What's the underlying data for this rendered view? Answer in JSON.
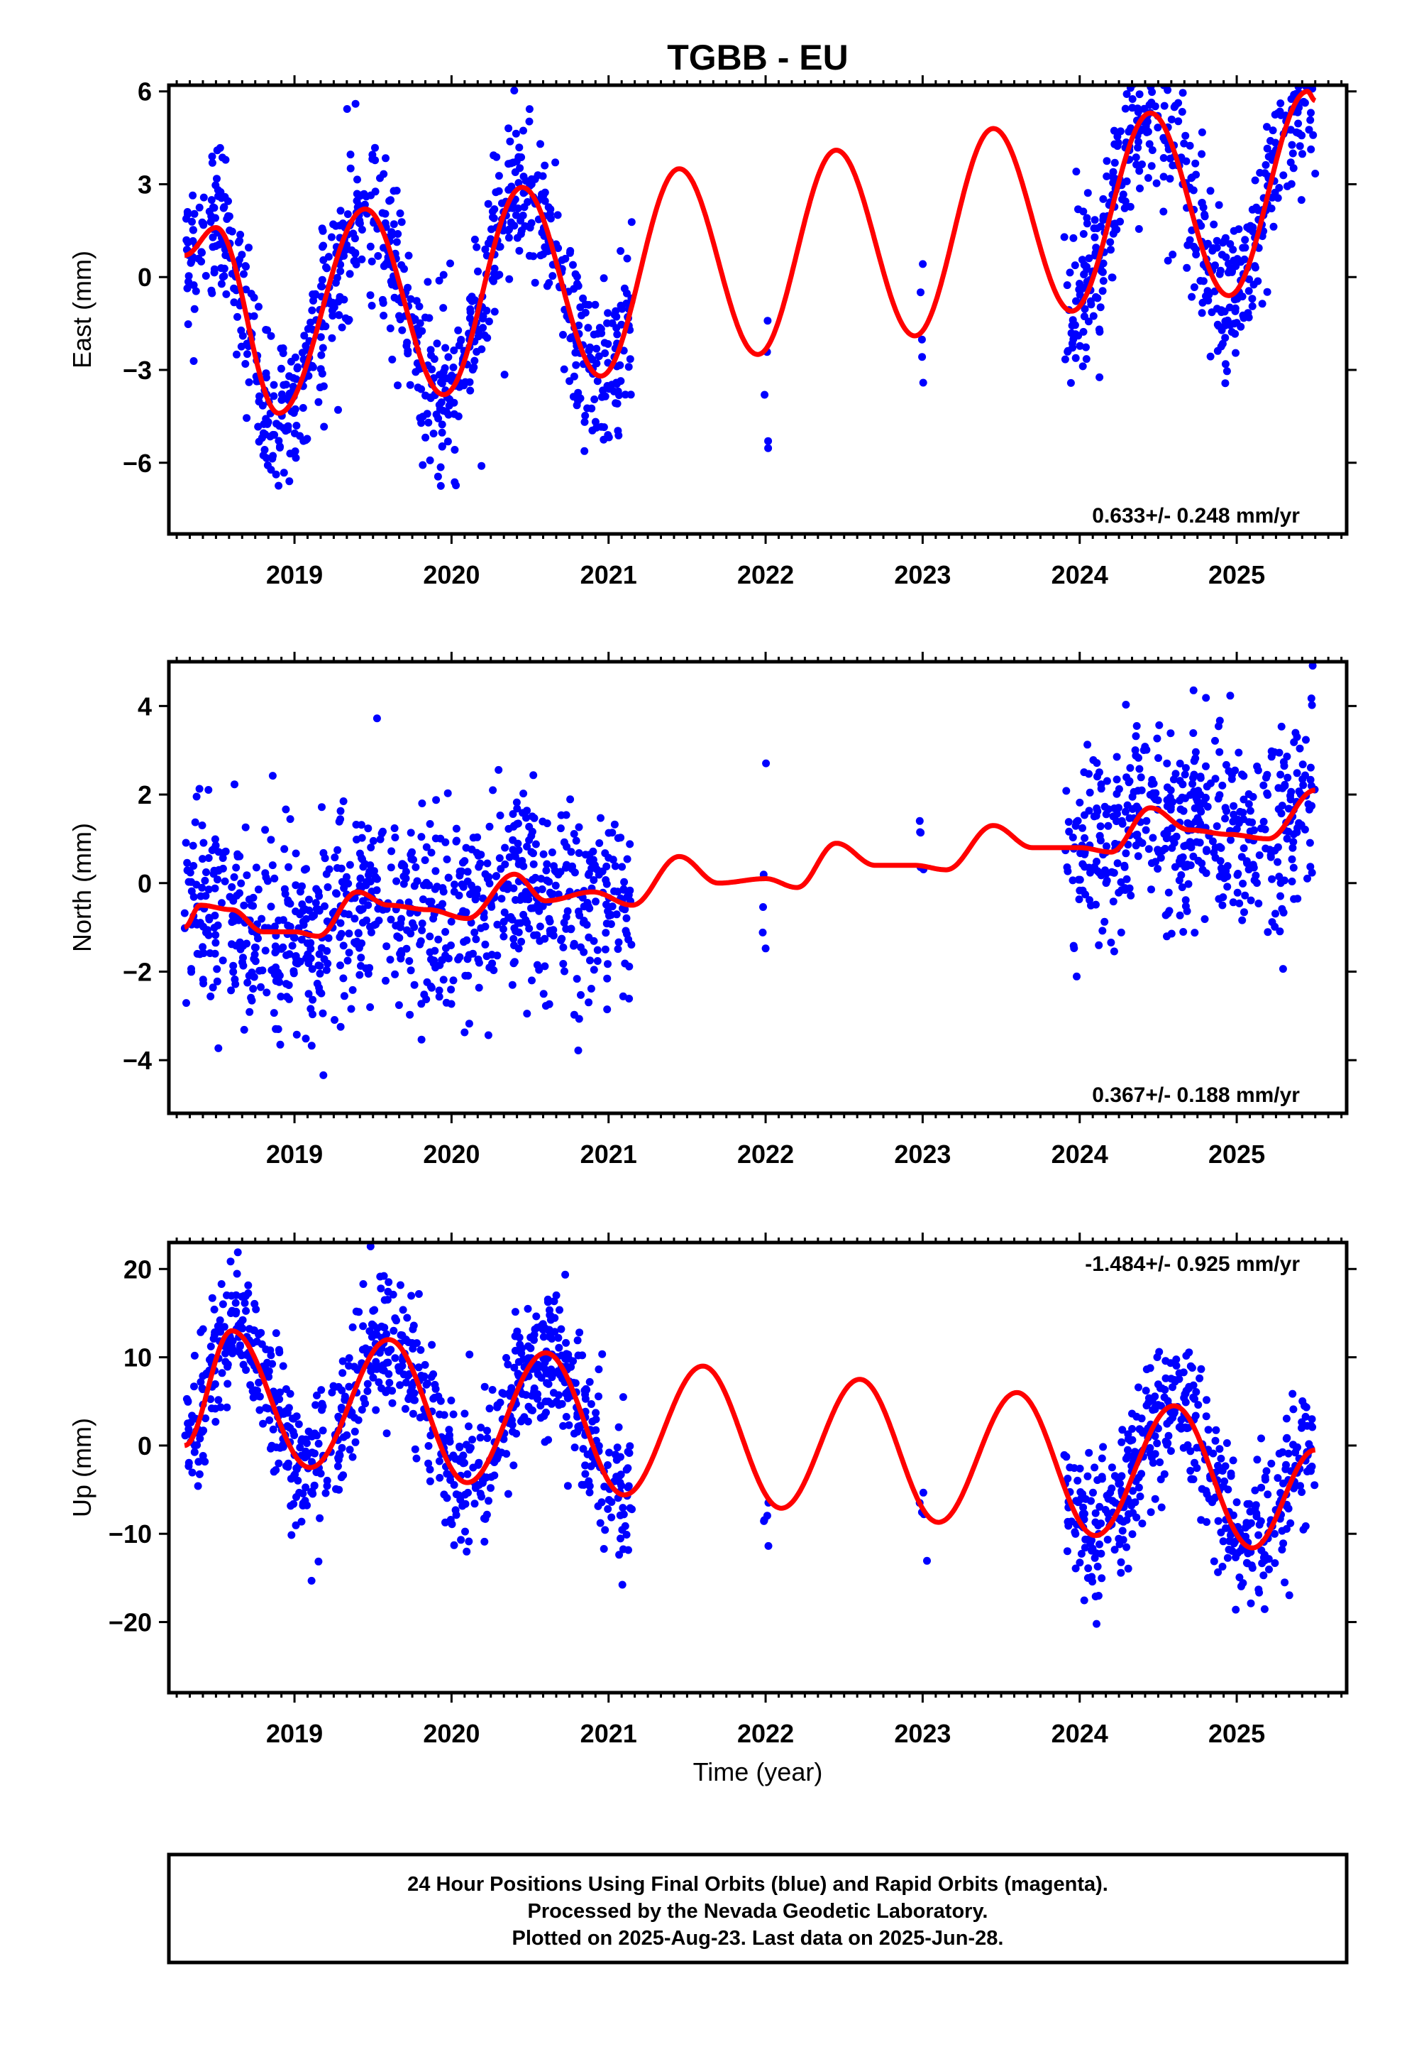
{
  "title": "TGBB - EU",
  "xlabel": "Time (year)",
  "x_ticks": [
    "2019",
    "2020",
    "2021",
    "2022",
    "2023",
    "2024",
    "2025"
  ],
  "footer": {
    "line1": "24 Hour Positions Using Final Orbits (blue) and Rapid Orbits (magenta).",
    "line2": "Processed by the Nevada Geodetic Laboratory.",
    "line3": "Plotted on 2025-Aug-23. Last data on 2025-Jun-28."
  },
  "colors": {
    "points": "#0000ff",
    "fit": "#ff0000",
    "frame": "#000000"
  },
  "chart_data": [
    {
      "type": "scatter",
      "ylabel": "East (mm)",
      "rate_label": "0.633+/- 0.248 mm/yr",
      "xlim": [
        2018.2,
        2025.7
      ],
      "ylim": [
        -8.3,
        6.2
      ],
      "y_ticks": [
        {
          "value": 6,
          "label": "6"
        },
        {
          "value": 3,
          "label": "3"
        },
        {
          "value": 0,
          "label": "0"
        },
        {
          "value": -3,
          "label": "−3"
        },
        {
          "value": -6,
          "label": "−6"
        }
      ],
      "data_segments": [
        [
          2018.3,
          2021.15
        ],
        [
          2021.98,
          2022.02
        ],
        [
          2022.97,
          2023.03
        ],
        [
          2023.9,
          2025.5
        ]
      ],
      "fit": {
        "x": [
          2018.3,
          2018.5,
          2018.9,
          2019.45,
          2019.95,
          2020.45,
          2020.95,
          2021.45,
          2021.95,
          2022.45,
          2022.95,
          2023.45,
          2023.95,
          2024.45,
          2024.95,
          2025.45,
          2025.5
        ],
        "y": [
          0.7,
          1.6,
          -4.4,
          2.2,
          -3.8,
          2.9,
          -3.2,
          3.5,
          -2.5,
          4.1,
          -1.9,
          4.8,
          -1.1,
          5.3,
          -0.6,
          6.0,
          5.7
        ]
      }
    },
    {
      "type": "scatter",
      "ylabel": "North (mm)",
      "rate_label": "0.367+/- 0.188 mm/yr",
      "xlim": [
        2018.2,
        2025.7
      ],
      "ylim": [
        -5.2,
        5.0
      ],
      "y_ticks": [
        {
          "value": 4,
          "label": "4"
        },
        {
          "value": 2,
          "label": "2"
        },
        {
          "value": 0,
          "label": "0"
        },
        {
          "value": -2,
          "label": "−2"
        },
        {
          "value": -4,
          "label": "−4"
        }
      ],
      "data_segments": [
        [
          2018.3,
          2021.15
        ],
        [
          2021.98,
          2022.02
        ],
        [
          2022.97,
          2023.03
        ],
        [
          2023.9,
          2025.5
        ]
      ],
      "fit": {
        "x": [
          2018.3,
          2018.4,
          2018.6,
          2018.8,
          2019.0,
          2019.15,
          2019.4,
          2019.6,
          2019.85,
          2020.1,
          2020.4,
          2020.6,
          2020.9,
          2021.15,
          2021.45,
          2021.7,
          2022.0,
          2022.2,
          2022.45,
          2022.7,
          2022.95,
          2023.15,
          2023.45,
          2023.7,
          2024.0,
          2024.2,
          2024.45,
          2024.7,
          2024.95,
          2025.2,
          2025.5
        ],
        "y": [
          -1.0,
          -0.5,
          -0.6,
          -1.1,
          -1.1,
          -1.2,
          -0.2,
          -0.5,
          -0.6,
          -0.8,
          0.2,
          -0.4,
          -0.2,
          -0.5,
          0.6,
          0.0,
          0.1,
          -0.1,
          0.9,
          0.4,
          0.4,
          0.3,
          1.3,
          0.8,
          0.8,
          0.7,
          1.7,
          1.2,
          1.1,
          1.0,
          2.1
        ]
      }
    },
    {
      "type": "scatter",
      "ylabel": "Up (mm)",
      "rate_label": "-1.484+/- 0.925 mm/yr",
      "xlim": [
        2018.2,
        2025.7
      ],
      "ylim": [
        -28,
        23
      ],
      "y_ticks": [
        {
          "value": 20,
          "label": "20"
        },
        {
          "value": 10,
          "label": "10"
        },
        {
          "value": 0,
          "label": "0"
        },
        {
          "value": -10,
          "label": "−10"
        },
        {
          "value": -20,
          "label": "−20"
        }
      ],
      "data_segments": [
        [
          2018.3,
          2021.15
        ],
        [
          2021.98,
          2022.02
        ],
        [
          2022.97,
          2023.03
        ],
        [
          2023.9,
          2025.5
        ]
      ],
      "fit": {
        "x": [
          2018.3,
          2018.6,
          2019.1,
          2019.6,
          2020.1,
          2020.6,
          2021.1,
          2021.6,
          2022.1,
          2022.6,
          2023.1,
          2023.6,
          2024.1,
          2024.6,
          2025.1,
          2025.5
        ],
        "y": [
          0.0,
          13.0,
          -2.5,
          12.0,
          -4.2,
          10.5,
          -5.6,
          9.0,
          -7.1,
          7.5,
          -8.7,
          6.0,
          -10.2,
          4.5,
          -11.6,
          -0.5
        ]
      }
    }
  ]
}
